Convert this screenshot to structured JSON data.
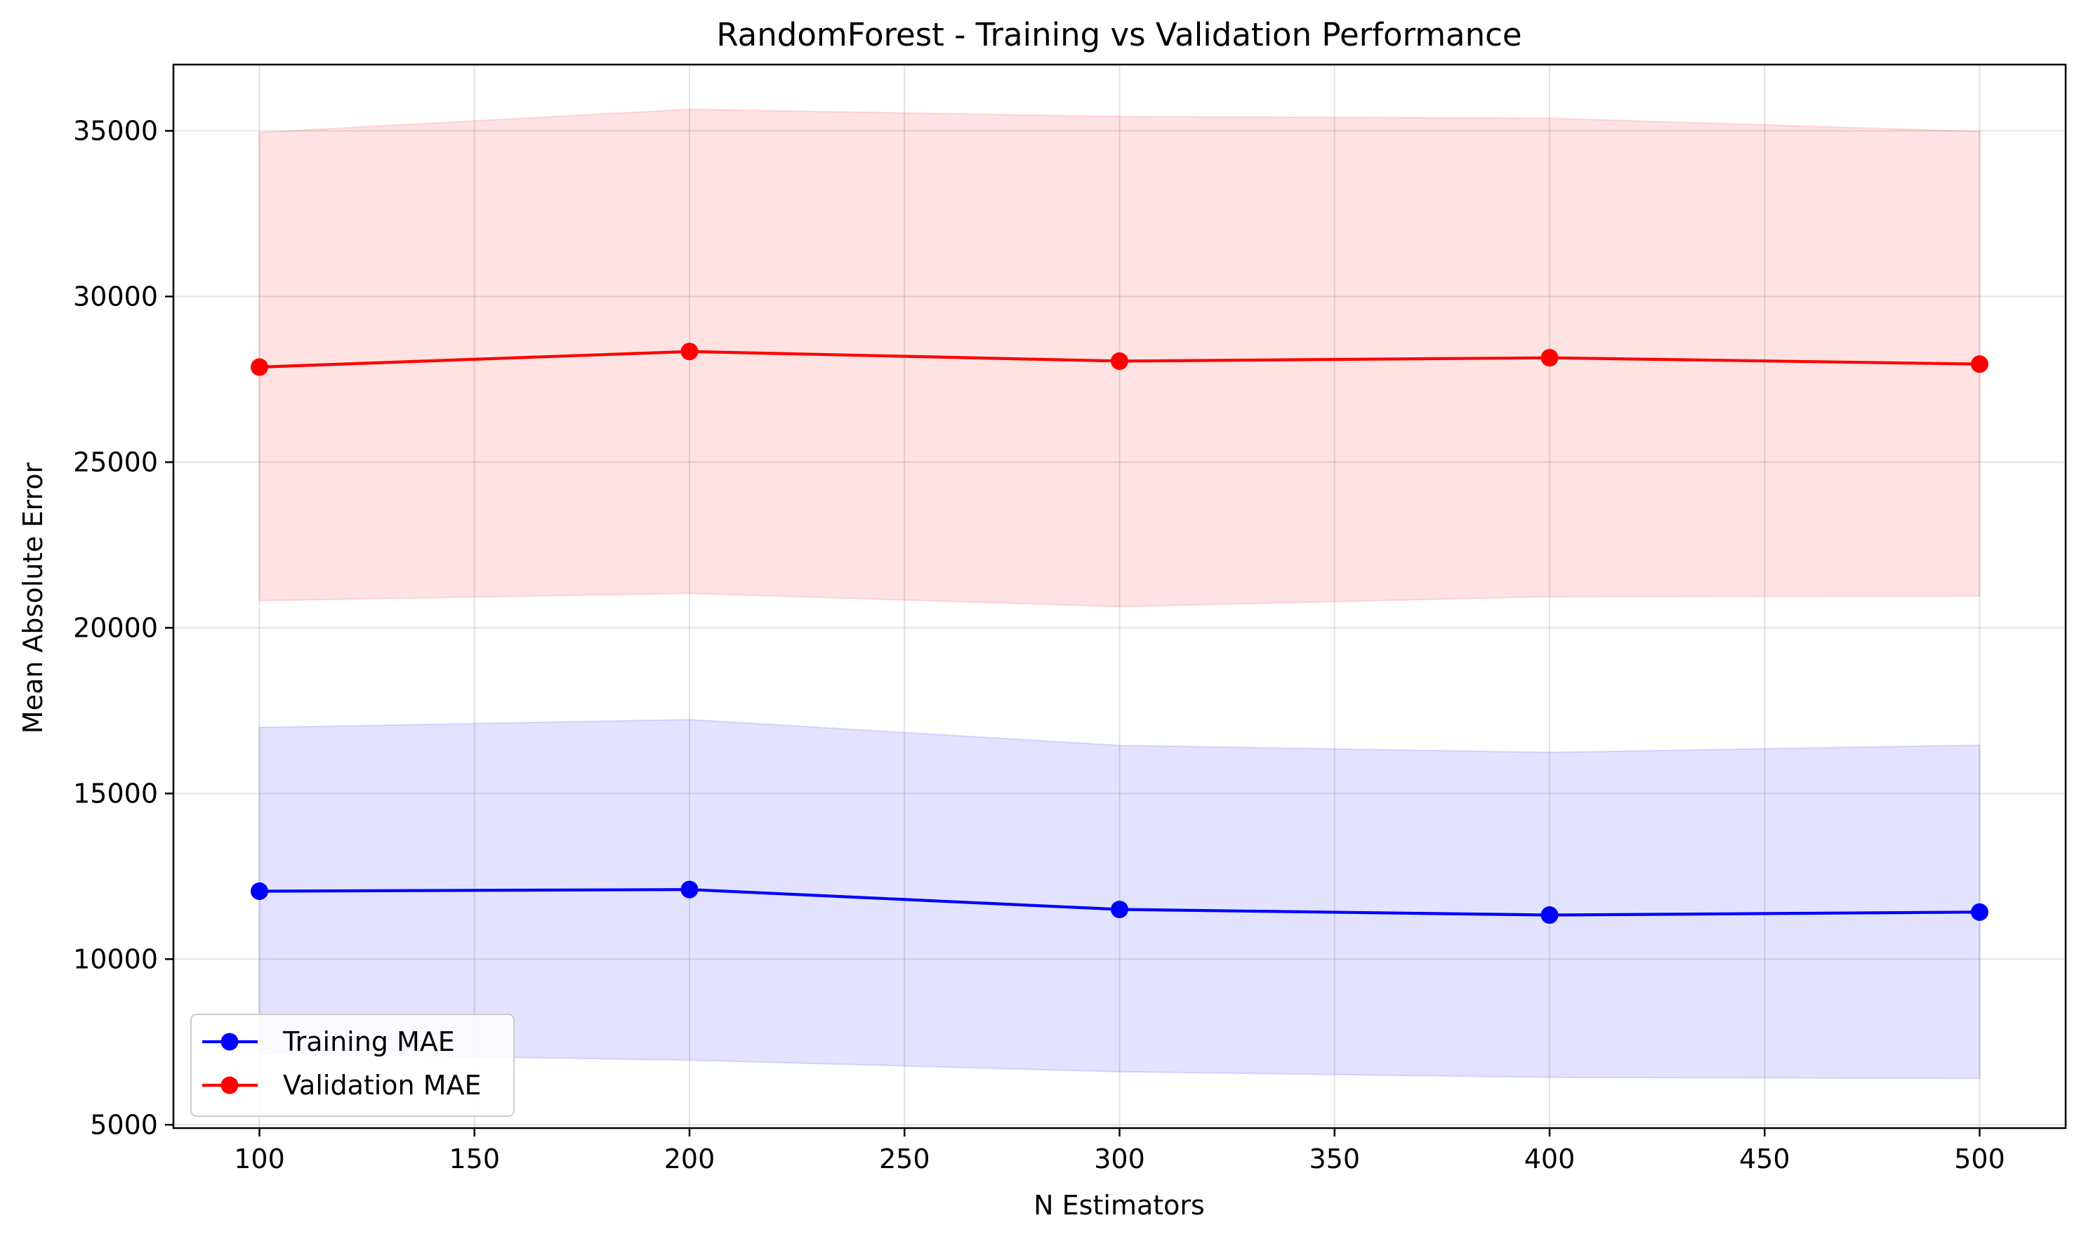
{
  "chart_data": {
    "type": "line",
    "title": "RandomForest - Training vs Validation Performance",
    "xlabel": "N Estimators",
    "ylabel": "Mean Absolute Error",
    "x": [
      100,
      200,
      300,
      400,
      500
    ],
    "xlim": [
      80,
      520
    ],
    "ylim": [
      4900,
      37000
    ],
    "xticks": [
      100,
      150,
      200,
      250,
      300,
      350,
      400,
      450,
      500
    ],
    "yticks": [
      5000,
      10000,
      15000,
      20000,
      25000,
      30000,
      35000
    ],
    "grid": true,
    "legend_position": "lower-left",
    "series": [
      {
        "name": "Training MAE",
        "color": "#0000ff",
        "marker": "circle",
        "values": [
          12050,
          12100,
          11500,
          11330,
          11420
        ],
        "band_upper": [
          16990,
          17230,
          16450,
          16240,
          16460
        ],
        "band_lower": [
          7150,
          6950,
          6600,
          6430,
          6400
        ]
      },
      {
        "name": "Validation MAE",
        "color": "#ff0000",
        "marker": "circle",
        "values": [
          27870,
          28340,
          28050,
          28150,
          27960
        ],
        "band_upper": [
          34950,
          35650,
          35430,
          35380,
          34980
        ],
        "band_lower": [
          20820,
          21040,
          20640,
          20940,
          20960
        ]
      }
    ]
  }
}
